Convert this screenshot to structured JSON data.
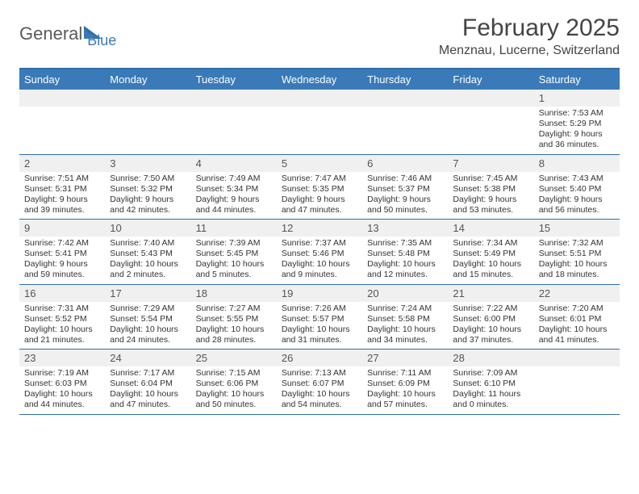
{
  "logo": {
    "text1": "General",
    "text2": "Blue"
  },
  "title": "February 2025",
  "location": "Menznau, Lucerne, Switzerland",
  "colors": {
    "header_bg": "#3a7ab8",
    "header_border": "#2f6fa8",
    "daynum_bg": "#f0f0f0",
    "text": "#333333"
  },
  "dow": [
    "Sunday",
    "Monday",
    "Tuesday",
    "Wednesday",
    "Thursday",
    "Friday",
    "Saturday"
  ],
  "weeks": [
    [
      {
        "n": "",
        "sr": "",
        "ss": "",
        "dl": ""
      },
      {
        "n": "",
        "sr": "",
        "ss": "",
        "dl": ""
      },
      {
        "n": "",
        "sr": "",
        "ss": "",
        "dl": ""
      },
      {
        "n": "",
        "sr": "",
        "ss": "",
        "dl": ""
      },
      {
        "n": "",
        "sr": "",
        "ss": "",
        "dl": ""
      },
      {
        "n": "",
        "sr": "",
        "ss": "",
        "dl": ""
      },
      {
        "n": "1",
        "sr": "Sunrise: 7:53 AM",
        "ss": "Sunset: 5:29 PM",
        "dl": "Daylight: 9 hours and 36 minutes."
      }
    ],
    [
      {
        "n": "2",
        "sr": "Sunrise: 7:51 AM",
        "ss": "Sunset: 5:31 PM",
        "dl": "Daylight: 9 hours and 39 minutes."
      },
      {
        "n": "3",
        "sr": "Sunrise: 7:50 AM",
        "ss": "Sunset: 5:32 PM",
        "dl": "Daylight: 9 hours and 42 minutes."
      },
      {
        "n": "4",
        "sr": "Sunrise: 7:49 AM",
        "ss": "Sunset: 5:34 PM",
        "dl": "Daylight: 9 hours and 44 minutes."
      },
      {
        "n": "5",
        "sr": "Sunrise: 7:47 AM",
        "ss": "Sunset: 5:35 PM",
        "dl": "Daylight: 9 hours and 47 minutes."
      },
      {
        "n": "6",
        "sr": "Sunrise: 7:46 AM",
        "ss": "Sunset: 5:37 PM",
        "dl": "Daylight: 9 hours and 50 minutes."
      },
      {
        "n": "7",
        "sr": "Sunrise: 7:45 AM",
        "ss": "Sunset: 5:38 PM",
        "dl": "Daylight: 9 hours and 53 minutes."
      },
      {
        "n": "8",
        "sr": "Sunrise: 7:43 AM",
        "ss": "Sunset: 5:40 PM",
        "dl": "Daylight: 9 hours and 56 minutes."
      }
    ],
    [
      {
        "n": "9",
        "sr": "Sunrise: 7:42 AM",
        "ss": "Sunset: 5:41 PM",
        "dl": "Daylight: 9 hours and 59 minutes."
      },
      {
        "n": "10",
        "sr": "Sunrise: 7:40 AM",
        "ss": "Sunset: 5:43 PM",
        "dl": "Daylight: 10 hours and 2 minutes."
      },
      {
        "n": "11",
        "sr": "Sunrise: 7:39 AM",
        "ss": "Sunset: 5:45 PM",
        "dl": "Daylight: 10 hours and 5 minutes."
      },
      {
        "n": "12",
        "sr": "Sunrise: 7:37 AM",
        "ss": "Sunset: 5:46 PM",
        "dl": "Daylight: 10 hours and 9 minutes."
      },
      {
        "n": "13",
        "sr": "Sunrise: 7:35 AM",
        "ss": "Sunset: 5:48 PM",
        "dl": "Daylight: 10 hours and 12 minutes."
      },
      {
        "n": "14",
        "sr": "Sunrise: 7:34 AM",
        "ss": "Sunset: 5:49 PM",
        "dl": "Daylight: 10 hours and 15 minutes."
      },
      {
        "n": "15",
        "sr": "Sunrise: 7:32 AM",
        "ss": "Sunset: 5:51 PM",
        "dl": "Daylight: 10 hours and 18 minutes."
      }
    ],
    [
      {
        "n": "16",
        "sr": "Sunrise: 7:31 AM",
        "ss": "Sunset: 5:52 PM",
        "dl": "Daylight: 10 hours and 21 minutes."
      },
      {
        "n": "17",
        "sr": "Sunrise: 7:29 AM",
        "ss": "Sunset: 5:54 PM",
        "dl": "Daylight: 10 hours and 24 minutes."
      },
      {
        "n": "18",
        "sr": "Sunrise: 7:27 AM",
        "ss": "Sunset: 5:55 PM",
        "dl": "Daylight: 10 hours and 28 minutes."
      },
      {
        "n": "19",
        "sr": "Sunrise: 7:26 AM",
        "ss": "Sunset: 5:57 PM",
        "dl": "Daylight: 10 hours and 31 minutes."
      },
      {
        "n": "20",
        "sr": "Sunrise: 7:24 AM",
        "ss": "Sunset: 5:58 PM",
        "dl": "Daylight: 10 hours and 34 minutes."
      },
      {
        "n": "21",
        "sr": "Sunrise: 7:22 AM",
        "ss": "Sunset: 6:00 PM",
        "dl": "Daylight: 10 hours and 37 minutes."
      },
      {
        "n": "22",
        "sr": "Sunrise: 7:20 AM",
        "ss": "Sunset: 6:01 PM",
        "dl": "Daylight: 10 hours and 41 minutes."
      }
    ],
    [
      {
        "n": "23",
        "sr": "Sunrise: 7:19 AM",
        "ss": "Sunset: 6:03 PM",
        "dl": "Daylight: 10 hours and 44 minutes."
      },
      {
        "n": "24",
        "sr": "Sunrise: 7:17 AM",
        "ss": "Sunset: 6:04 PM",
        "dl": "Daylight: 10 hours and 47 minutes."
      },
      {
        "n": "25",
        "sr": "Sunrise: 7:15 AM",
        "ss": "Sunset: 6:06 PM",
        "dl": "Daylight: 10 hours and 50 minutes."
      },
      {
        "n": "26",
        "sr": "Sunrise: 7:13 AM",
        "ss": "Sunset: 6:07 PM",
        "dl": "Daylight: 10 hours and 54 minutes."
      },
      {
        "n": "27",
        "sr": "Sunrise: 7:11 AM",
        "ss": "Sunset: 6:09 PM",
        "dl": "Daylight: 10 hours and 57 minutes."
      },
      {
        "n": "28",
        "sr": "Sunrise: 7:09 AM",
        "ss": "Sunset: 6:10 PM",
        "dl": "Daylight: 11 hours and 0 minutes."
      },
      {
        "n": "",
        "sr": "",
        "ss": "",
        "dl": ""
      }
    ]
  ]
}
